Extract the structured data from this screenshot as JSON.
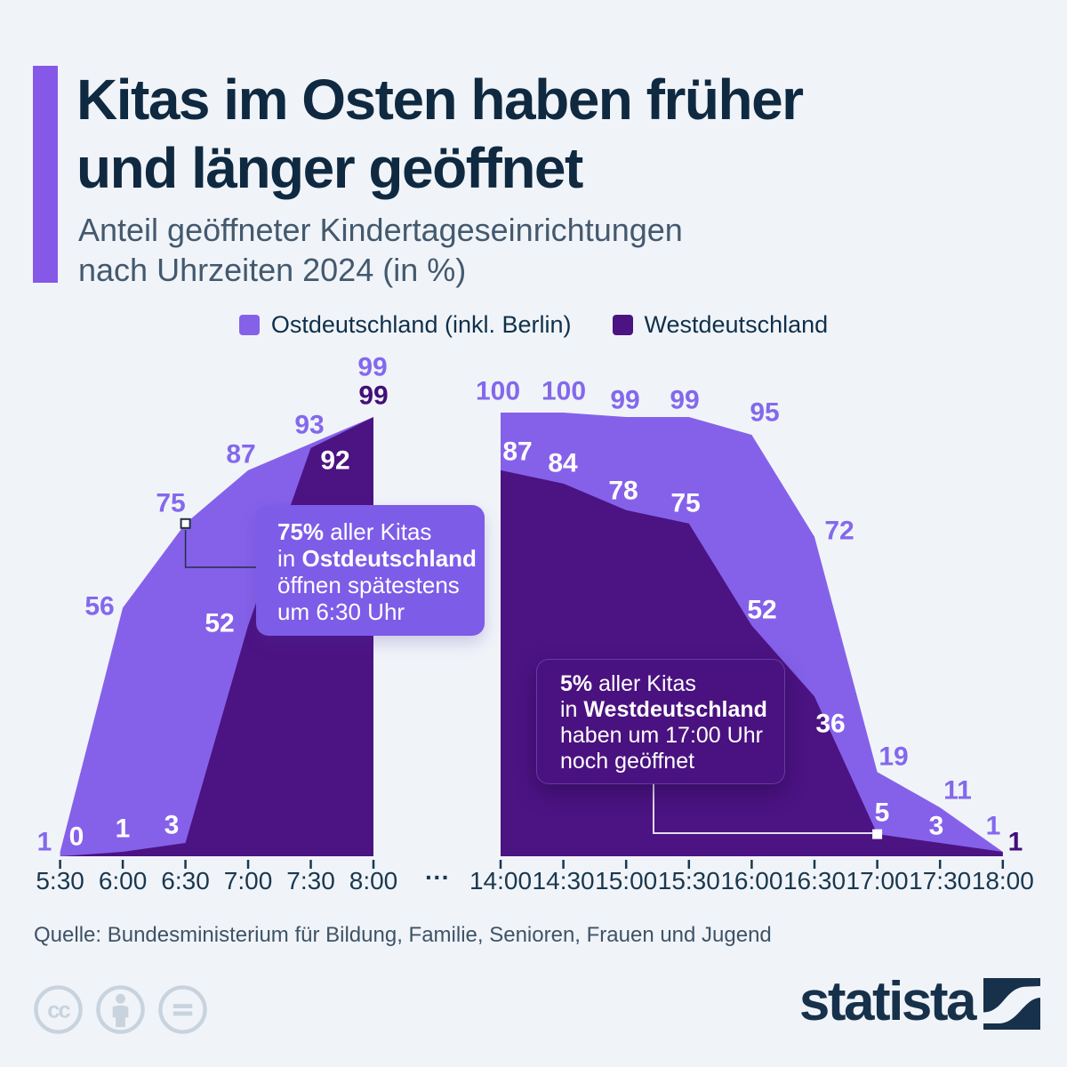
{
  "header": {
    "title": [
      "Kitas im Osten haben früher",
      "und länger geöffnet"
    ],
    "subtitle": [
      "Anteil geöffneter Kindertageseinrichtungen",
      "nach Uhrzeiten 2024 (in %)"
    ]
  },
  "legend": [
    {
      "label": "Ostdeutschland (inkl. Berlin)",
      "color": "#8561ea"
    },
    {
      "label": "Westdeutschland",
      "color": "#4c1383"
    }
  ],
  "chart_data": {
    "type": "area",
    "title": "Anteil geöffneter Kindertageseinrichtungen nach Uhrzeiten 2024 (in %)",
    "ylim": [
      0,
      100
    ],
    "grid": false,
    "legend_position": "top",
    "x_axis_separator": "···",
    "charts": [
      {
        "categories": [
          "5:30",
          "6:00",
          "6:30",
          "7:00",
          "7:30",
          "8:00"
        ],
        "series": [
          {
            "name": "Ostdeutschland (inkl. Berlin)",
            "color": "#8561ea",
            "values": [
              1,
              56,
              75,
              87,
              93,
              99
            ]
          },
          {
            "name": "Westdeutschland",
            "color": "#4c1383",
            "values": [
              0,
              1,
              3,
              52,
              92,
              99
            ]
          }
        ]
      },
      {
        "categories": [
          "14:00",
          "14:30",
          "15:00",
          "15:30",
          "16:00",
          "16:30",
          "17:00",
          "17:30",
          "18:00"
        ],
        "series": [
          {
            "name": "Ostdeutschland (inkl. Berlin)",
            "color": "#8561ea",
            "values": [
              100,
              100,
              99,
              99,
              95,
              72,
              19,
              11,
              1
            ]
          },
          {
            "name": "Westdeutschland",
            "color": "#4c1383",
            "values": [
              87,
              84,
              78,
              75,
              52,
              36,
              5,
              3,
              1
            ]
          }
        ]
      }
    ]
  },
  "annotations": [
    {
      "lines": [
        [
          {
            "t": "75%",
            "b": 1
          },
          {
            "t": " aller Kitas"
          }
        ],
        [
          {
            "t": "in "
          },
          {
            "t": "Ostdeutschland",
            "b": 1
          }
        ],
        [
          {
            "t": "öffnen spätestens"
          }
        ],
        [
          {
            "t": "um 6:30 Uhr"
          }
        ]
      ]
    },
    {
      "lines": [
        [
          {
            "t": "5%",
            "b": 1
          },
          {
            "t": " aller Kitas"
          }
        ],
        [
          {
            "t": "in "
          },
          {
            "t": "Westdeutschland",
            "b": 1
          }
        ],
        [
          {
            "t": "haben um 17:00 Uhr"
          }
        ],
        [
          {
            "t": "noch geöffnet"
          }
        ]
      ]
    }
  ],
  "source": "Quelle: Bundesministerium für Bildung, Familie, Senioren, Frauen und Jugend",
  "brand": {
    "wordmark": "statista"
  },
  "license_icons": [
    "cc",
    "attribution",
    "no-derivatives"
  ],
  "colors": {
    "background": "#f0f4f9",
    "accent_bar": "#8658e8",
    "title": "#0f2940",
    "subtitle": "#44596e",
    "east": "#8561ea",
    "west": "#4c1383",
    "east_label": "#8468ec",
    "west_label_dark": "#420f78",
    "white_label": "#ffffff",
    "axis": "#1a384f"
  }
}
